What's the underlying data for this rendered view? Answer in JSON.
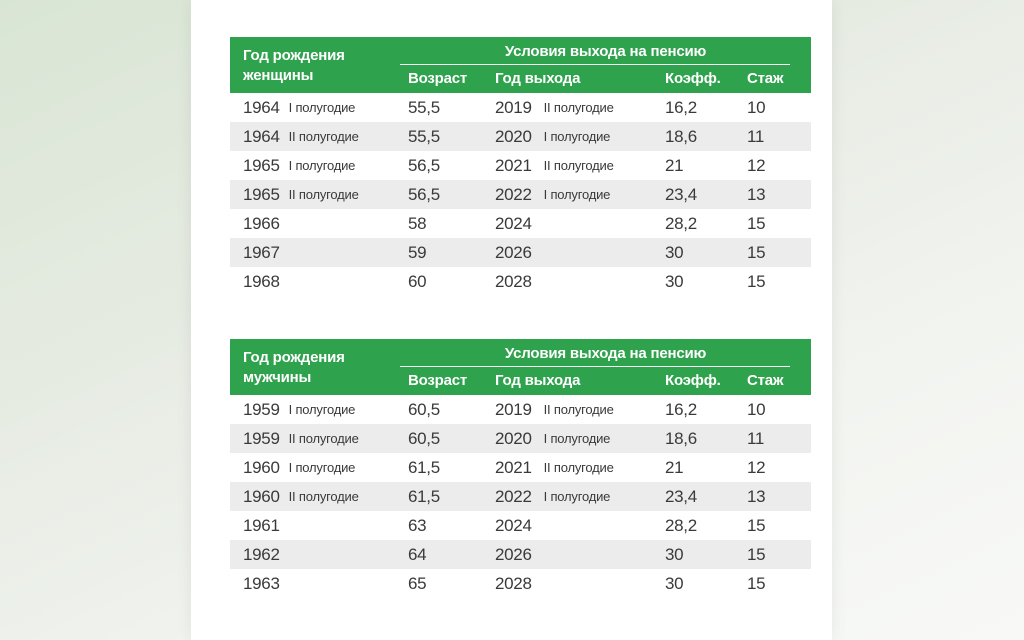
{
  "colors": {
    "accent_green": "#2fa24d",
    "row_stripe": "#ececec",
    "text": "#3a3a3a",
    "backdrop_tint": "#d9e5d4"
  },
  "tables": [
    {
      "birth_header": "Год рождения женщины",
      "conditions_header": "Условия выхода на пенсию",
      "columns": [
        "Возраст",
        "Год выхода",
        "Коэфф.",
        "Стаж"
      ],
      "rows": [
        {
          "birth_year": "1964",
          "birth_half": "I полугодие",
          "age": "55,5",
          "exit_year": "2019",
          "exit_half": "II полугодие",
          "coeff": "16,2",
          "experience": "10"
        },
        {
          "birth_year": "1964",
          "birth_half": "II полугодие",
          "age": "55,5",
          "exit_year": "2020",
          "exit_half": "I полугодие",
          "coeff": "18,6",
          "experience": "11"
        },
        {
          "birth_year": "1965",
          "birth_half": "I полугодие",
          "age": "56,5",
          "exit_year": "2021",
          "exit_half": "II полугодие",
          "coeff": "21",
          "experience": "12"
        },
        {
          "birth_year": "1965",
          "birth_half": "II полугодие",
          "age": "56,5",
          "exit_year": "2022",
          "exit_half": "I полугодие",
          "coeff": "23,4",
          "experience": "13"
        },
        {
          "birth_year": "1966",
          "birth_half": "",
          "age": "58",
          "exit_year": "2024",
          "exit_half": "",
          "coeff": "28,2",
          "experience": "15"
        },
        {
          "birth_year": "1967",
          "birth_half": "",
          "age": "59",
          "exit_year": "2026",
          "exit_half": "",
          "coeff": "30",
          "experience": "15"
        },
        {
          "birth_year": "1968",
          "birth_half": "",
          "age": "60",
          "exit_year": "2028",
          "exit_half": "",
          "coeff": "30",
          "experience": "15"
        }
      ]
    },
    {
      "birth_header": "Год рождения мужчины",
      "conditions_header": "Условия выхода на пенсию",
      "columns": [
        "Возраст",
        "Год выхода",
        "Коэфф.",
        "Стаж"
      ],
      "rows": [
        {
          "birth_year": "1959",
          "birth_half": "I полугодие",
          "age": "60,5",
          "exit_year": "2019",
          "exit_half": "II полугодие",
          "coeff": "16,2",
          "experience": "10"
        },
        {
          "birth_year": "1959",
          "birth_half": "II полугодие",
          "age": "60,5",
          "exit_year": "2020",
          "exit_half": "I полугодие",
          "coeff": "18,6",
          "experience": "11"
        },
        {
          "birth_year": "1960",
          "birth_half": "I полугодие",
          "age": "61,5",
          "exit_year": "2021",
          "exit_half": "II полугодие",
          "coeff": "21",
          "experience": "12"
        },
        {
          "birth_year": "1960",
          "birth_half": "II полугодие",
          "age": "61,5",
          "exit_year": "2022",
          "exit_half": "I полугодие",
          "coeff": "23,4",
          "experience": "13"
        },
        {
          "birth_year": "1961",
          "birth_half": "",
          "age": "63",
          "exit_year": "2024",
          "exit_half": "",
          "coeff": "28,2",
          "experience": "15"
        },
        {
          "birth_year": "1962",
          "birth_half": "",
          "age": "64",
          "exit_year": "2026",
          "exit_half": "",
          "coeff": "30",
          "experience": "15"
        },
        {
          "birth_year": "1963",
          "birth_half": "",
          "age": "65",
          "exit_year": "2028",
          "exit_half": "",
          "coeff": "30",
          "experience": "15"
        }
      ]
    }
  ],
  "chart_data": [
    {
      "type": "table",
      "title": "Год рождения женщины — Условия выхода на пенсию",
      "columns": [
        "Год рождения женщины",
        "Возраст",
        "Год выхода",
        "Коэфф.",
        "Стаж"
      ],
      "rows": [
        [
          "1964 I полугодие",
          "55,5",
          "2019 II полугодие",
          "16,2",
          "10"
        ],
        [
          "1964 II полугодие",
          "55,5",
          "2020 I полугодие",
          "18,6",
          "11"
        ],
        [
          "1965 I полугодие",
          "56,5",
          "2021 II полугодие",
          "21",
          "12"
        ],
        [
          "1965 II полугодие",
          "56,5",
          "2022 I полугодие",
          "23,4",
          "13"
        ],
        [
          "1966",
          "58",
          "2024",
          "28,2",
          "15"
        ],
        [
          "1967",
          "59",
          "2026",
          "30",
          "15"
        ],
        [
          "1968",
          "60",
          "2028",
          "30",
          "15"
        ]
      ]
    },
    {
      "type": "table",
      "title": "Год рождения мужчины — Условия выхода на пенсию",
      "columns": [
        "Год рождения мужчины",
        "Возраст",
        "Год выхода",
        "Коэфф.",
        "Стаж"
      ],
      "rows": [
        [
          "1959 I полугодие",
          "60,5",
          "2019 II полугодие",
          "16,2",
          "10"
        ],
        [
          "1959 II полугодие",
          "60,5",
          "2020 I полугодие",
          "18,6",
          "11"
        ],
        [
          "1960 I полугодие",
          "61,5",
          "2021 II полугодие",
          "21",
          "12"
        ],
        [
          "1960 II полугодие",
          "61,5",
          "2022 I полугодие",
          "23,4",
          "13"
        ],
        [
          "1961",
          "63",
          "2024",
          "28,2",
          "15"
        ],
        [
          "1962",
          "64",
          "2026",
          "30",
          "15"
        ],
        [
          "1963",
          "65",
          "2028",
          "30",
          "15"
        ]
      ]
    }
  ]
}
